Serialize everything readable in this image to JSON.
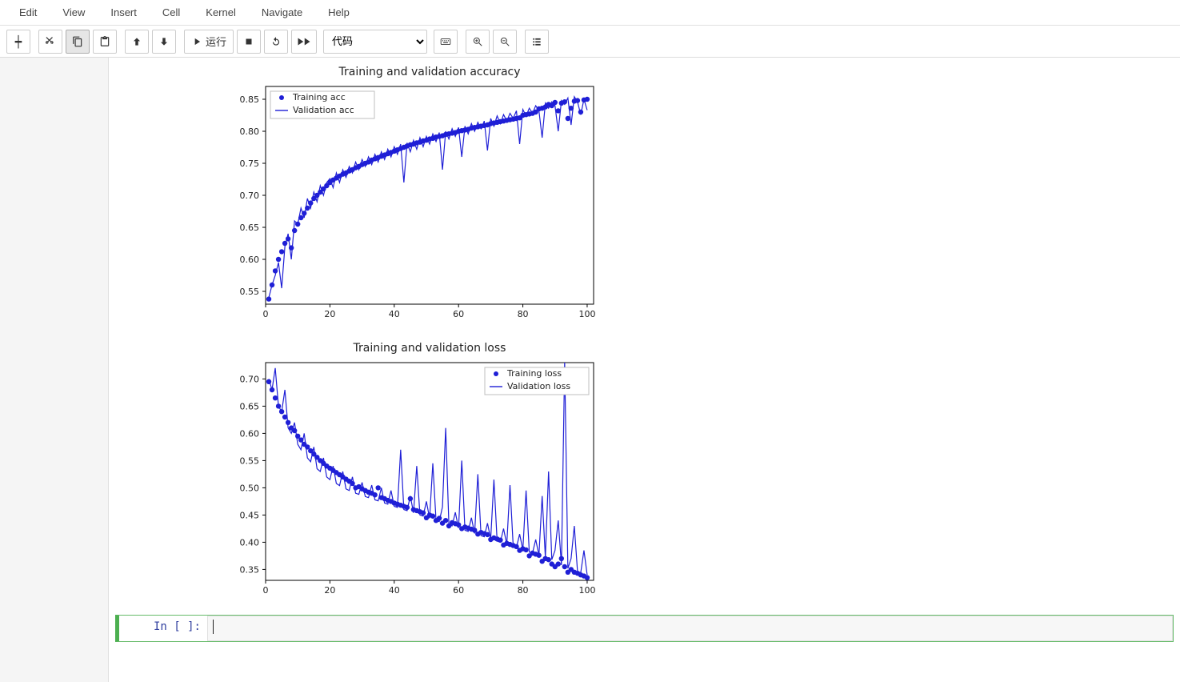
{
  "menubar": {
    "items": [
      "Edit",
      "View",
      "Insert",
      "Cell",
      "Kernel",
      "Navigate",
      "Help"
    ]
  },
  "toolbar": {
    "run_label": "运行",
    "cell_type_selected": "代码"
  },
  "cell": {
    "prompt": "In [ ]:",
    "source": ""
  },
  "chart_acc": {
    "type": "scatter+line",
    "title": "Training and validation accuracy",
    "title_fontsize": 14,
    "x_range": [
      0,
      102
    ],
    "y_range": [
      0.53,
      0.87
    ],
    "x_ticks": [
      0,
      20,
      40,
      60,
      80,
      100
    ],
    "y_ticks": [
      0.55,
      0.6,
      0.65,
      0.7,
      0.75,
      0.8,
      0.85
    ],
    "y_tick_labels": [
      "0.55",
      "0.60",
      "0.65",
      "0.70",
      "0.75",
      "0.80",
      "0.85"
    ],
    "marker_color": "#1f1fd6",
    "line_color": "#1f1fd6",
    "marker_radius": 3.2,
    "line_width": 1.2,
    "legend": {
      "position": "upper-left",
      "items": [
        {
          "type": "marker",
          "label": "Training acc"
        },
        {
          "type": "line",
          "label": "Validation acc"
        }
      ]
    },
    "background_color": "#ffffff",
    "training": [
      [
        1,
        0.538
      ],
      [
        2,
        0.56
      ],
      [
        3,
        0.582
      ],
      [
        4,
        0.6
      ],
      [
        5,
        0.612
      ],
      [
        6,
        0.625
      ],
      [
        7,
        0.632
      ],
      [
        8,
        0.618
      ],
      [
        9,
        0.645
      ],
      [
        10,
        0.655
      ],
      [
        11,
        0.665
      ],
      [
        12,
        0.672
      ],
      [
        13,
        0.68
      ],
      [
        14,
        0.688
      ],
      [
        15,
        0.695
      ],
      [
        16,
        0.7
      ],
      [
        17,
        0.705
      ],
      [
        18,
        0.71
      ],
      [
        19,
        0.715
      ],
      [
        20,
        0.72
      ],
      [
        21,
        0.724
      ],
      [
        22,
        0.727
      ],
      [
        23,
        0.73
      ],
      [
        24,
        0.733
      ],
      [
        25,
        0.735
      ],
      [
        26,
        0.738
      ],
      [
        27,
        0.74
      ],
      [
        28,
        0.743
      ],
      [
        29,
        0.745
      ],
      [
        30,
        0.748
      ],
      [
        31,
        0.75
      ],
      [
        32,
        0.752
      ],
      [
        33,
        0.755
      ],
      [
        34,
        0.757
      ],
      [
        35,
        0.759
      ],
      [
        36,
        0.761
      ],
      [
        37,
        0.763
      ],
      [
        38,
        0.765
      ],
      [
        39,
        0.767
      ],
      [
        40,
        0.769
      ],
      [
        41,
        0.771
      ],
      [
        42,
        0.773
      ],
      [
        43,
        0.775
      ],
      [
        44,
        0.777
      ],
      [
        45,
        0.779
      ],
      [
        46,
        0.78
      ],
      [
        47,
        0.782
      ],
      [
        48,
        0.783
      ],
      [
        49,
        0.785
      ],
      [
        50,
        0.786
      ],
      [
        51,
        0.788
      ],
      [
        52,
        0.789
      ],
      [
        53,
        0.791
      ],
      [
        54,
        0.792
      ],
      [
        55,
        0.793
      ],
      [
        56,
        0.795
      ],
      [
        57,
        0.796
      ],
      [
        58,
        0.797
      ],
      [
        59,
        0.798
      ],
      [
        60,
        0.8
      ],
      [
        61,
        0.801
      ],
      [
        62,
        0.802
      ],
      [
        63,
        0.803
      ],
      [
        64,
        0.805
      ],
      [
        65,
        0.806
      ],
      [
        66,
        0.807
      ],
      [
        67,
        0.808
      ],
      [
        68,
        0.809
      ],
      [
        69,
        0.81
      ],
      [
        70,
        0.812
      ],
      [
        71,
        0.813
      ],
      [
        72,
        0.814
      ],
      [
        73,
        0.815
      ],
      [
        74,
        0.816
      ],
      [
        75,
        0.817
      ],
      [
        76,
        0.818
      ],
      [
        77,
        0.819
      ],
      [
        78,
        0.82
      ],
      [
        79,
        0.821
      ],
      [
        80,
        0.825
      ],
      [
        81,
        0.826
      ],
      [
        82,
        0.827
      ],
      [
        83,
        0.828
      ],
      [
        84,
        0.83
      ],
      [
        85,
        0.835
      ],
      [
        86,
        0.836
      ],
      [
        87,
        0.838
      ],
      [
        88,
        0.842
      ],
      [
        89,
        0.84
      ],
      [
        90,
        0.845
      ],
      [
        91,
        0.832
      ],
      [
        92,
        0.844
      ],
      [
        93,
        0.846
      ],
      [
        94,
        0.82
      ],
      [
        95,
        0.836
      ],
      [
        96,
        0.847
      ],
      [
        97,
        0.848
      ],
      [
        98,
        0.83
      ],
      [
        99,
        0.849
      ],
      [
        100,
        0.85
      ]
    ],
    "validation": [
      [
        1,
        0.54
      ],
      [
        2,
        0.56
      ],
      [
        3,
        0.575
      ],
      [
        4,
        0.595
      ],
      [
        5,
        0.555
      ],
      [
        6,
        0.62
      ],
      [
        7,
        0.64
      ],
      [
        8,
        0.6
      ],
      [
        9,
        0.66
      ],
      [
        10,
        0.655
      ],
      [
        11,
        0.68
      ],
      [
        12,
        0.665
      ],
      [
        13,
        0.695
      ],
      [
        14,
        0.68
      ],
      [
        15,
        0.705
      ],
      [
        16,
        0.69
      ],
      [
        17,
        0.715
      ],
      [
        18,
        0.7
      ],
      [
        19,
        0.72
      ],
      [
        20,
        0.726
      ],
      [
        21,
        0.712
      ],
      [
        22,
        0.735
      ],
      [
        23,
        0.72
      ],
      [
        24,
        0.74
      ],
      [
        25,
        0.728
      ],
      [
        26,
        0.745
      ],
      [
        27,
        0.735
      ],
      [
        28,
        0.752
      ],
      [
        29,
        0.74
      ],
      [
        30,
        0.756
      ],
      [
        31,
        0.745
      ],
      [
        32,
        0.76
      ],
      [
        33,
        0.748
      ],
      [
        34,
        0.764
      ],
      [
        35,
        0.752
      ],
      [
        36,
        0.768
      ],
      [
        37,
        0.756
      ],
      [
        38,
        0.772
      ],
      [
        39,
        0.76
      ],
      [
        40,
        0.776
      ],
      [
        41,
        0.764
      ],
      [
        42,
        0.78
      ],
      [
        43,
        0.72
      ],
      [
        44,
        0.782
      ],
      [
        45,
        0.768
      ],
      [
        46,
        0.786
      ],
      [
        47,
        0.772
      ],
      [
        48,
        0.79
      ],
      [
        49,
        0.776
      ],
      [
        50,
        0.792
      ],
      [
        51,
        0.78
      ],
      [
        52,
        0.796
      ],
      [
        53,
        0.784
      ],
      [
        54,
        0.798
      ],
      [
        55,
        0.74
      ],
      [
        56,
        0.8
      ],
      [
        57,
        0.788
      ],
      [
        58,
        0.804
      ],
      [
        59,
        0.792
      ],
      [
        60,
        0.806
      ],
      [
        61,
        0.76
      ],
      [
        62,
        0.808
      ],
      [
        63,
        0.796
      ],
      [
        64,
        0.812
      ],
      [
        65,
        0.8
      ],
      [
        66,
        0.814
      ],
      [
        67,
        0.804
      ],
      [
        68,
        0.816
      ],
      [
        69,
        0.77
      ],
      [
        70,
        0.82
      ],
      [
        71,
        0.808
      ],
      [
        72,
        0.824
      ],
      [
        73,
        0.812
      ],
      [
        74,
        0.826
      ],
      [
        75,
        0.816
      ],
      [
        76,
        0.828
      ],
      [
        77,
        0.82
      ],
      [
        78,
        0.832
      ],
      [
        79,
        0.78
      ],
      [
        80,
        0.834
      ],
      [
        81,
        0.824
      ],
      [
        82,
        0.836
      ],
      [
        83,
        0.828
      ],
      [
        84,
        0.84
      ],
      [
        85,
        0.832
      ],
      [
        86,
        0.79
      ],
      [
        87,
        0.844
      ],
      [
        88,
        0.836
      ],
      [
        89,
        0.846
      ],
      [
        90,
        0.84
      ],
      [
        91,
        0.8
      ],
      [
        92,
        0.848
      ],
      [
        93,
        0.842
      ],
      [
        94,
        0.852
      ],
      [
        95,
        0.81
      ],
      [
        96,
        0.854
      ],
      [
        97,
        0.846
      ],
      [
        98,
        0.826
      ],
      [
        99,
        0.85
      ],
      [
        100,
        0.833
      ]
    ]
  },
  "chart_loss": {
    "type": "scatter+line",
    "title": "Training and validation loss",
    "title_fontsize": 14,
    "x_range": [
      0,
      102
    ],
    "y_range": [
      0.33,
      0.73
    ],
    "x_ticks": [
      0,
      20,
      40,
      60,
      80,
      100
    ],
    "y_ticks": [
      0.35,
      0.4,
      0.45,
      0.5,
      0.55,
      0.6,
      0.65,
      0.7
    ],
    "y_tick_labels": [
      "0.35",
      "0.40",
      "0.45",
      "0.50",
      "0.55",
      "0.60",
      "0.65",
      "0.70"
    ],
    "marker_color": "#1f1fd6",
    "line_color": "#1f1fd6",
    "marker_radius": 3.2,
    "line_width": 1.2,
    "legend": {
      "position": "upper-right",
      "items": [
        {
          "type": "marker",
          "label": "Training loss"
        },
        {
          "type": "line",
          "label": "Validation loss"
        }
      ]
    },
    "background_color": "#ffffff",
    "training": [
      [
        1,
        0.695
      ],
      [
        2,
        0.68
      ],
      [
        3,
        0.665
      ],
      [
        4,
        0.65
      ],
      [
        5,
        0.64
      ],
      [
        6,
        0.63
      ],
      [
        7,
        0.62
      ],
      [
        8,
        0.61
      ],
      [
        9,
        0.605
      ],
      [
        10,
        0.595
      ],
      [
        11,
        0.588
      ],
      [
        12,
        0.58
      ],
      [
        13,
        0.575
      ],
      [
        14,
        0.568
      ],
      [
        15,
        0.562
      ],
      [
        16,
        0.556
      ],
      [
        17,
        0.55
      ],
      [
        18,
        0.545
      ],
      [
        19,
        0.54
      ],
      [
        20,
        0.536
      ],
      [
        21,
        0.532
      ],
      [
        22,
        0.528
      ],
      [
        23,
        0.524
      ],
      [
        24,
        0.52
      ],
      [
        25,
        0.516
      ],
      [
        26,
        0.512
      ],
      [
        27,
        0.508
      ],
      [
        28,
        0.5
      ],
      [
        29,
        0.502
      ],
      [
        30,
        0.498
      ],
      [
        31,
        0.495
      ],
      [
        32,
        0.492
      ],
      [
        33,
        0.49
      ],
      [
        34,
        0.487
      ],
      [
        35,
        0.5
      ],
      [
        36,
        0.482
      ],
      [
        37,
        0.48
      ],
      [
        38,
        0.477
      ],
      [
        39,
        0.475
      ],
      [
        40,
        0.472
      ],
      [
        41,
        0.47
      ],
      [
        42,
        0.468
      ],
      [
        43,
        0.466
      ],
      [
        44,
        0.464
      ],
      [
        45,
        0.48
      ],
      [
        46,
        0.46
      ],
      [
        47,
        0.458
      ],
      [
        48,
        0.456
      ],
      [
        49,
        0.454
      ],
      [
        50,
        0.445
      ],
      [
        51,
        0.45
      ],
      [
        52,
        0.448
      ],
      [
        53,
        0.44
      ],
      [
        54,
        0.444
      ],
      [
        55,
        0.435
      ],
      [
        56,
        0.44
      ],
      [
        57,
        0.43
      ],
      [
        58,
        0.436
      ],
      [
        59,
        0.434
      ],
      [
        60,
        0.432
      ],
      [
        61,
        0.425
      ],
      [
        62,
        0.428
      ],
      [
        63,
        0.426
      ],
      [
        64,
        0.424
      ],
      [
        65,
        0.422
      ],
      [
        66,
        0.415
      ],
      [
        67,
        0.418
      ],
      [
        68,
        0.416
      ],
      [
        69,
        0.414
      ],
      [
        70,
        0.405
      ],
      [
        71,
        0.408
      ],
      [
        72,
        0.406
      ],
      [
        73,
        0.404
      ],
      [
        74,
        0.395
      ],
      [
        75,
        0.398
      ],
      [
        76,
        0.396
      ],
      [
        77,
        0.394
      ],
      [
        78,
        0.392
      ],
      [
        79,
        0.385
      ],
      [
        80,
        0.388
      ],
      [
        81,
        0.386
      ],
      [
        82,
        0.375
      ],
      [
        83,
        0.38
      ],
      [
        84,
        0.378
      ],
      [
        85,
        0.376
      ],
      [
        86,
        0.365
      ],
      [
        87,
        0.37
      ],
      [
        88,
        0.368
      ],
      [
        89,
        0.36
      ],
      [
        90,
        0.355
      ],
      [
        91,
        0.36
      ],
      [
        92,
        0.37
      ],
      [
        93,
        0.355
      ],
      [
        94,
        0.345
      ],
      [
        95,
        0.35
      ],
      [
        96,
        0.345
      ],
      [
        97,
        0.343
      ],
      [
        98,
        0.34
      ],
      [
        99,
        0.338
      ],
      [
        100,
        0.335
      ]
    ],
    "validation": [
      [
        1,
        0.7
      ],
      [
        2,
        0.68
      ],
      [
        3,
        0.72
      ],
      [
        4,
        0.65
      ],
      [
        5,
        0.64
      ],
      [
        6,
        0.68
      ],
      [
        7,
        0.61
      ],
      [
        8,
        0.6
      ],
      [
        9,
        0.62
      ],
      [
        10,
        0.58
      ],
      [
        11,
        0.57
      ],
      [
        12,
        0.6
      ],
      [
        13,
        0.555
      ],
      [
        14,
        0.548
      ],
      [
        15,
        0.575
      ],
      [
        16,
        0.535
      ],
      [
        17,
        0.53
      ],
      [
        18,
        0.555
      ],
      [
        19,
        0.52
      ],
      [
        20,
        0.515
      ],
      [
        21,
        0.54
      ],
      [
        22,
        0.508
      ],
      [
        23,
        0.504
      ],
      [
        24,
        0.53
      ],
      [
        25,
        0.498
      ],
      [
        26,
        0.495
      ],
      [
        27,
        0.52
      ],
      [
        28,
        0.49
      ],
      [
        29,
        0.488
      ],
      [
        30,
        0.51
      ],
      [
        31,
        0.484
      ],
      [
        32,
        0.482
      ],
      [
        33,
        0.505
      ],
      [
        34,
        0.478
      ],
      [
        35,
        0.476
      ],
      [
        36,
        0.5
      ],
      [
        37,
        0.472
      ],
      [
        38,
        0.47
      ],
      [
        39,
        0.495
      ],
      [
        40,
        0.466
      ],
      [
        41,
        0.464
      ],
      [
        42,
        0.57
      ],
      [
        43,
        0.46
      ],
      [
        44,
        0.458
      ],
      [
        45,
        0.485
      ],
      [
        46,
        0.454
      ],
      [
        47,
        0.54
      ],
      [
        48,
        0.45
      ],
      [
        49,
        0.448
      ],
      [
        50,
        0.475
      ],
      [
        51,
        0.444
      ],
      [
        52,
        0.545
      ],
      [
        53,
        0.44
      ],
      [
        54,
        0.438
      ],
      [
        55,
        0.465
      ],
      [
        56,
        0.61
      ],
      [
        57,
        0.432
      ],
      [
        58,
        0.43
      ],
      [
        59,
        0.455
      ],
      [
        60,
        0.426
      ],
      [
        61,
        0.55
      ],
      [
        62,
        0.422
      ],
      [
        63,
        0.42
      ],
      [
        64,
        0.445
      ],
      [
        65,
        0.416
      ],
      [
        66,
        0.525
      ],
      [
        67,
        0.412
      ],
      [
        68,
        0.41
      ],
      [
        69,
        0.435
      ],
      [
        70,
        0.406
      ],
      [
        71,
        0.515
      ],
      [
        72,
        0.402
      ],
      [
        73,
        0.4
      ],
      [
        74,
        0.425
      ],
      [
        75,
        0.396
      ],
      [
        76,
        0.505
      ],
      [
        77,
        0.392
      ],
      [
        78,
        0.39
      ],
      [
        79,
        0.415
      ],
      [
        80,
        0.386
      ],
      [
        81,
        0.495
      ],
      [
        82,
        0.382
      ],
      [
        83,
        0.38
      ],
      [
        84,
        0.405
      ],
      [
        85,
        0.376
      ],
      [
        86,
        0.485
      ],
      [
        87,
        0.372
      ],
      [
        88,
        0.53
      ],
      [
        89,
        0.368
      ],
      [
        90,
        0.385
      ],
      [
        91,
        0.44
      ],
      [
        92,
        0.358
      ],
      [
        93,
        0.82
      ],
      [
        94,
        0.352
      ],
      [
        95,
        0.37
      ],
      [
        96,
        0.43
      ],
      [
        97,
        0.346
      ],
      [
        98,
        0.344
      ],
      [
        99,
        0.385
      ],
      [
        100,
        0.34
      ]
    ]
  }
}
